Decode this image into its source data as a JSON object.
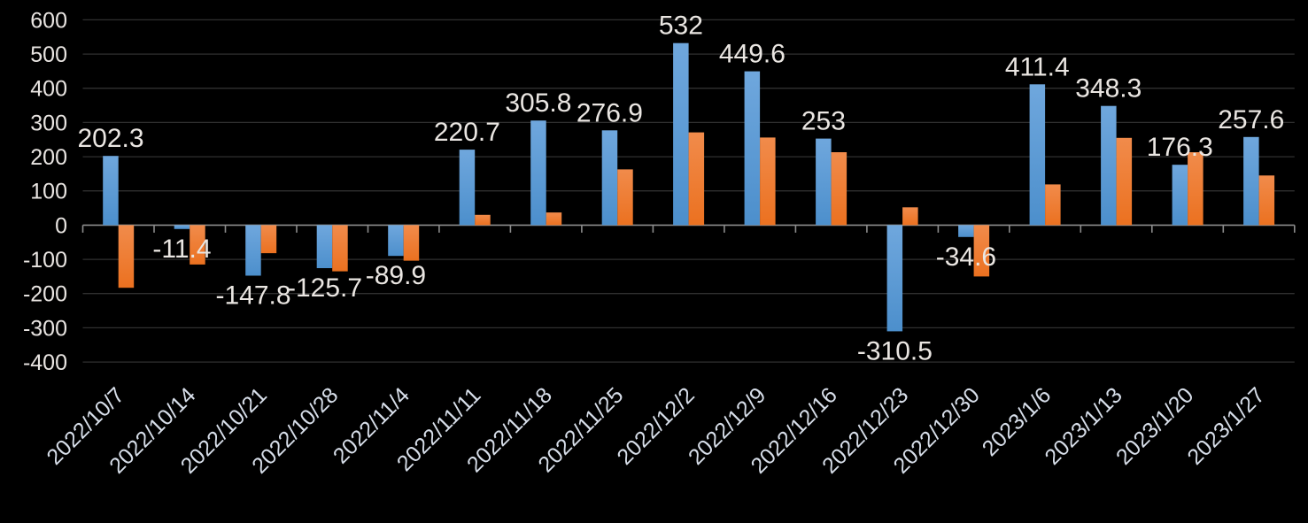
{
  "chart_data": {
    "type": "bar",
    "title": "",
    "categories": [
      "2022/10/7",
      "2022/10/14",
      "2022/10/21",
      "2022/10/28",
      "2022/11/4",
      "2022/11/11",
      "2022/11/18",
      "2022/11/25",
      "2022/12/2",
      "2022/12/9",
      "2022/12/16",
      "2022/12/23",
      "2022/12/30",
      "2023/1/6",
      "2023/1/13",
      "2023/1/20",
      "2023/1/27"
    ],
    "series": [
      {
        "name": "blue-series",
        "color": "#5B9BD5",
        "values": [
          202.3,
          -11.4,
          -147.8,
          -125.7,
          -89.9,
          220.7,
          305.8,
          276.9,
          532,
          449.6,
          253,
          -310.5,
          -34.6,
          411.4,
          348.3,
          176.3,
          257.6
        ],
        "data_labels": [
          "202.3",
          "-11.4",
          "-147.8",
          "-125.7",
          "-89.9",
          "220.7",
          "305.8",
          "276.9",
          "532",
          "449.6",
          "253",
          "-310.5",
          "-34.6",
          "411.4",
          "348.3",
          "176.3",
          "257.6"
        ],
        "labels_visible": true
      },
      {
        "name": "orange-series",
        "color": "#ED7D31",
        "values": [
          -183,
          -115,
          -82,
          -135,
          -104,
          30,
          37,
          163,
          271,
          256,
          213,
          52,
          -150,
          119,
          255,
          213,
          145
        ],
        "data_labels": null,
        "labels_visible": false
      }
    ],
    "ylim": [
      -400,
      600
    ],
    "yticks": [
      600,
      500,
      400,
      300,
      200,
      100,
      0,
      -100,
      -200,
      -300,
      -400
    ],
    "ytick_labels": [
      "600",
      "500",
      "400",
      "300",
      "200",
      "100",
      "0",
      "-100",
      "-200",
      "-300",
      "-400"
    ],
    "grid": true,
    "legend": "none",
    "x_tick_label_rotation_deg": 45
  },
  "colors": {
    "background": "#000000",
    "bar_blue": "#5B9BD5",
    "bar_orange": "#ED7D31",
    "gridline": "#303030",
    "axis_line": "#8C8C8C",
    "value_label": "#EAE6E2",
    "axis_label": "#E8E4E1",
    "date_label": "#D7DEE9"
  }
}
